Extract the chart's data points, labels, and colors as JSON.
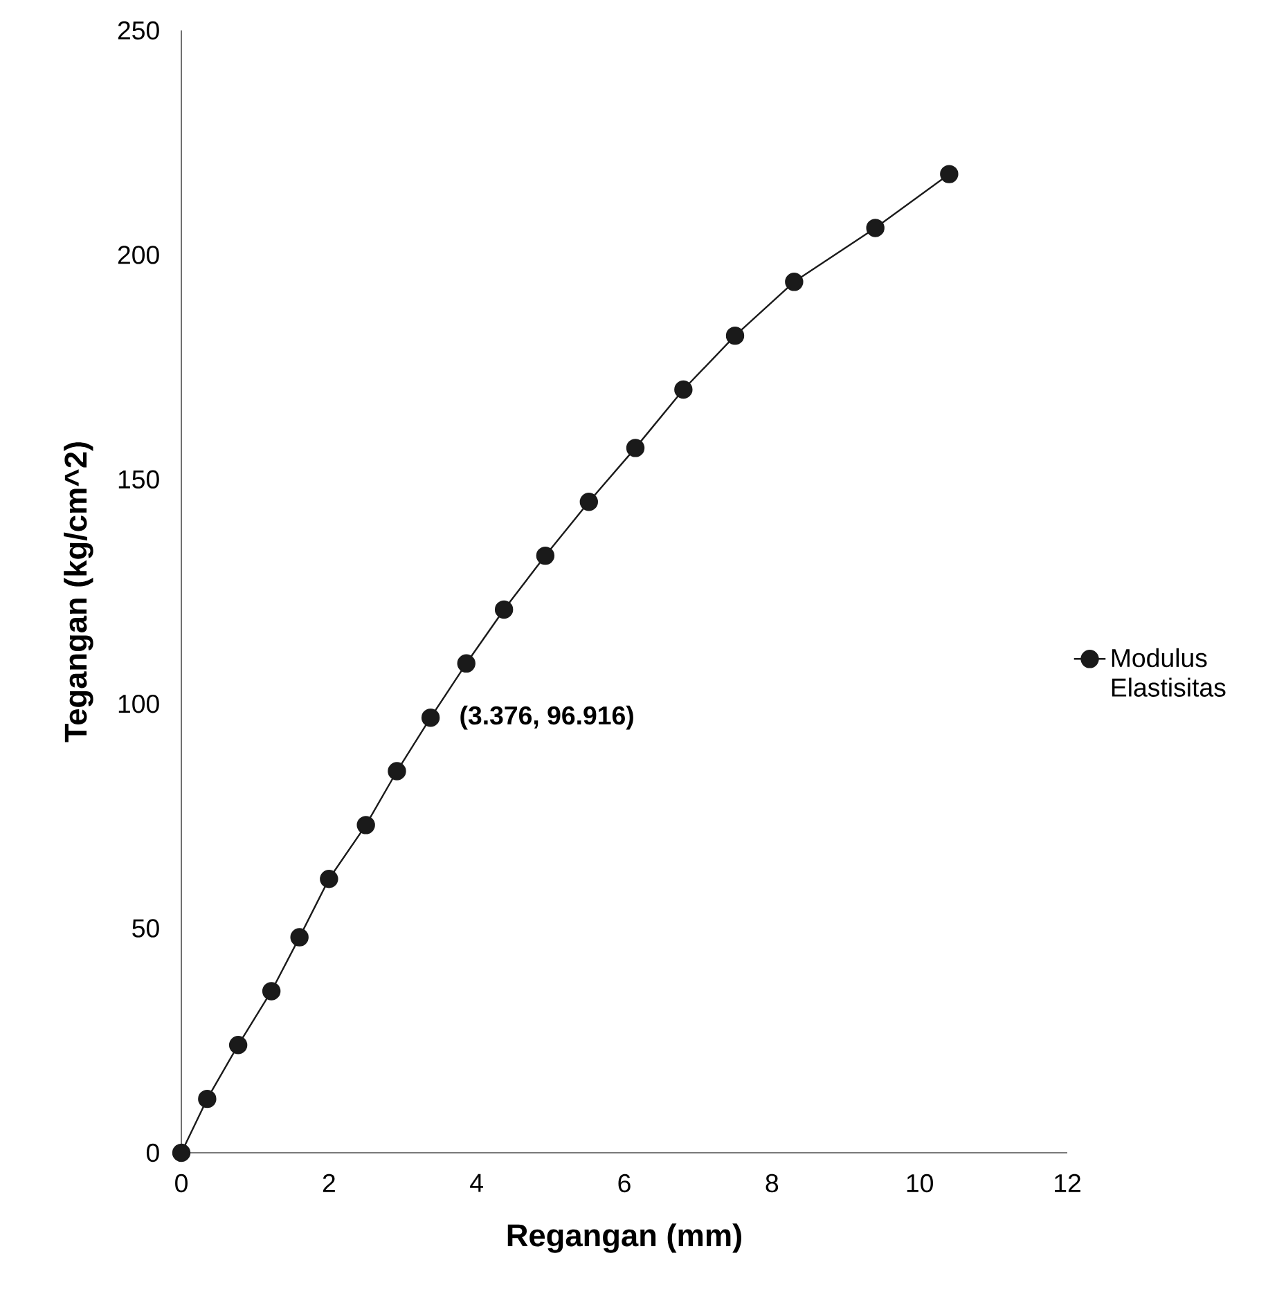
{
  "chart_data": {
    "type": "line",
    "xlabel": "Regangan (mm)",
    "ylabel": "Tegangan (kg/cm^2)",
    "xlim": [
      0,
      12
    ],
    "ylim": [
      0,
      250
    ],
    "xticks": [
      0,
      2,
      4,
      6,
      8,
      10,
      12
    ],
    "yticks": [
      0,
      50,
      100,
      150,
      200,
      250
    ],
    "x": [
      0,
      0.35,
      0.77,
      1.22,
      1.6,
      2.0,
      2.5,
      2.92,
      3.376,
      3.86,
      4.37,
      4.93,
      5.52,
      6.15,
      6.8,
      7.5,
      8.3,
      9.4,
      10.4
    ],
    "series": [
      {
        "name": "Modulus Elastisitas",
        "color": "#1a1a1a",
        "values": [
          0,
          12,
          24,
          36,
          48,
          61,
          73,
          85,
          96.916,
          109,
          121,
          133,
          145,
          157,
          170,
          182,
          194,
          206,
          218
        ]
      }
    ],
    "annotations": [
      {
        "text": "(3.376, 96.916)",
        "x": 3.376,
        "y": 96.916
      }
    ],
    "marker": "circle",
    "line_style": "solid",
    "legend": "right",
    "grid": false
  }
}
